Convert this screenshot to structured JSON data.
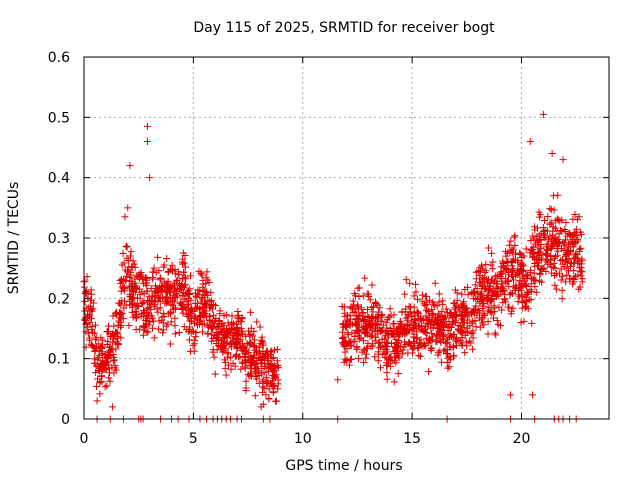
{
  "chart_data": {
    "type": "scatter",
    "title": "Day 115 of 2025, SRMTID for receiver bogt",
    "xlabel": "GPS time / hours",
    "ylabel": "SRMTID / TECUs",
    "xlim": [
      0,
      24
    ],
    "ylim": [
      0,
      0.6
    ],
    "xticks": [
      0,
      5,
      10,
      15,
      20
    ],
    "xtick_labels": [
      "0",
      "5",
      "10",
      "15",
      "20"
    ],
    "yticks": [
      0,
      0.1,
      0.2,
      0.3,
      0.4,
      0.5,
      0.6
    ],
    "ytick_labels": [
      "0",
      "0.1",
      "0.2",
      "0.3",
      "0.4",
      "0.5",
      "0.6"
    ],
    "grid": true,
    "marker": "+",
    "series": [
      {
        "name": "SRMTID",
        "color": "#e00000",
        "trend": [
          [
            0.0,
            0.19
          ],
          [
            0.3,
            0.17
          ],
          [
            0.6,
            0.1
          ],
          [
            1.0,
            0.1
          ],
          [
            1.5,
            0.13
          ],
          [
            1.9,
            0.26
          ],
          [
            2.2,
            0.21
          ],
          [
            2.6,
            0.2
          ],
          [
            3.0,
            0.18
          ],
          [
            3.5,
            0.21
          ],
          [
            4.0,
            0.2
          ],
          [
            4.6,
            0.22
          ],
          [
            5.0,
            0.16
          ],
          [
            5.5,
            0.2
          ],
          [
            6.0,
            0.14
          ],
          [
            6.5,
            0.13
          ],
          [
            7.0,
            0.14
          ],
          [
            7.5,
            0.11
          ],
          [
            8.0,
            0.1
          ],
          [
            8.5,
            0.08
          ],
          [
            8.9,
            0.07
          ],
          [
            11.8,
            0.14
          ],
          [
            12.3,
            0.15
          ],
          [
            13.0,
            0.16
          ],
          [
            13.6,
            0.14
          ],
          [
            14.2,
            0.12
          ],
          [
            14.8,
            0.16
          ],
          [
            15.5,
            0.15
          ],
          [
            16.0,
            0.16
          ],
          [
            16.6,
            0.14
          ],
          [
            17.2,
            0.16
          ],
          [
            17.8,
            0.18
          ],
          [
            18.4,
            0.21
          ],
          [
            19.0,
            0.21
          ],
          [
            19.6,
            0.25
          ],
          [
            20.2,
            0.22
          ],
          [
            20.8,
            0.28
          ],
          [
            21.4,
            0.3
          ],
          [
            21.9,
            0.27
          ],
          [
            22.4,
            0.28
          ],
          [
            22.8,
            0.27
          ]
        ],
        "spikes": [
          [
            2.1,
            0.42
          ],
          [
            2.9,
            0.485
          ],
          [
            2.9,
            0.46
          ],
          [
            3.0,
            0.4
          ],
          [
            2.0,
            0.35
          ],
          [
            1.3,
            0.02
          ],
          [
            0.6,
            0.03
          ],
          [
            8.1,
            0.02
          ],
          [
            19.5,
            0.04
          ],
          [
            20.5,
            0.04
          ],
          [
            21.0,
            0.505
          ],
          [
            20.4,
            0.46
          ],
          [
            21.4,
            0.44
          ],
          [
            21.9,
            0.43
          ],
          [
            11.6,
            0.065
          ]
        ],
        "zero_points": [
          0.6,
          1.2,
          1.8,
          2.5,
          2.6,
          2.7,
          3.5,
          4.0,
          4.3,
          4.8,
          5.3,
          5.6,
          5.9,
          6.1,
          6.3,
          6.5,
          6.7,
          7.0,
          7.2,
          8.2,
          8.5,
          11.6,
          16.6,
          19.5,
          20.6,
          21.5,
          21.7,
          21.9,
          22.2,
          22.5
        ]
      }
    ]
  }
}
